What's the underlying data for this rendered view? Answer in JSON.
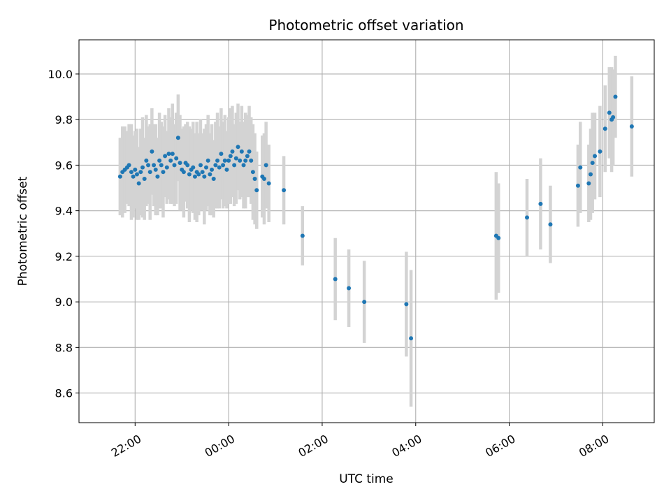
{
  "chart_data": {
    "type": "scatter",
    "title": "Photometric offset variation",
    "xlabel": "UTC time",
    "ylabel": "Photometric offset",
    "x_unit": "hours (UTC, continuing past midnight)",
    "xlim": [
      20.8,
      33.1
    ],
    "ylim": [
      8.47,
      10.15
    ],
    "x_ticks": [
      {
        "value": 22,
        "label": "22:00"
      },
      {
        "value": 24,
        "label": "00:00"
      },
      {
        "value": 26,
        "label": "02:00"
      },
      {
        "value": 28,
        "label": "04:00"
      },
      {
        "value": 30,
        "label": "06:00"
      },
      {
        "value": 32,
        "label": "08:00"
      }
    ],
    "y_ticks": [
      {
        "value": 8.6,
        "label": "8.6"
      },
      {
        "value": 8.8,
        "label": "8.8"
      },
      {
        "value": 9.0,
        "label": "9.0"
      },
      {
        "value": 9.2,
        "label": "9.2"
      },
      {
        "value": 9.4,
        "label": "9.4"
      },
      {
        "value": 9.6,
        "label": "9.6"
      },
      {
        "value": 9.8,
        "label": "9.8"
      },
      {
        "value": 10.0,
        "label": "10.0"
      }
    ],
    "grid": true,
    "colors": {
      "marker": "#1f77b4",
      "errorbar": "#d3d3d3",
      "grid": "#b0b0b0"
    },
    "series": [
      {
        "marker": "circle",
        "points": [
          [
            21.68,
            9.55,
            0.17
          ],
          [
            21.73,
            9.57,
            0.2
          ],
          [
            21.78,
            9.58,
            0.19
          ],
          [
            21.83,
            9.59,
            0.16
          ],
          [
            21.87,
            9.6,
            0.18
          ],
          [
            21.92,
            9.57,
            0.21
          ],
          [
            21.96,
            9.55,
            0.18
          ],
          [
            22.0,
            9.58,
            0.17
          ],
          [
            22.04,
            9.56,
            0.2
          ],
          [
            22.08,
            9.52,
            0.16
          ],
          [
            22.12,
            9.57,
            0.19
          ],
          [
            22.16,
            9.59,
            0.22
          ],
          [
            22.2,
            9.54,
            0.18
          ],
          [
            22.24,
            9.62,
            0.2
          ],
          [
            22.28,
            9.6,
            0.17
          ],
          [
            22.32,
            9.57,
            0.21
          ],
          [
            22.36,
            9.66,
            0.19
          ],
          [
            22.4,
            9.6,
            0.18
          ],
          [
            22.44,
            9.58,
            0.2
          ],
          [
            22.48,
            9.55,
            0.17
          ],
          [
            22.52,
            9.62,
            0.21
          ],
          [
            22.56,
            9.6,
            0.19
          ],
          [
            22.6,
            9.57,
            0.2
          ],
          [
            22.64,
            9.64,
            0.18
          ],
          [
            22.68,
            9.59,
            0.16
          ],
          [
            22.72,
            9.65,
            0.2
          ],
          [
            22.76,
            9.62,
            0.19
          ],
          [
            22.8,
            9.65,
            0.22
          ],
          [
            22.84,
            9.6,
            0.18
          ],
          [
            22.88,
            9.63,
            0.2
          ],
          [
            22.92,
            9.72,
            0.19
          ],
          [
            22.96,
            9.61,
            0.21
          ],
          [
            23.0,
            9.58,
            0.18
          ],
          [
            23.04,
            9.57,
            0.2
          ],
          [
            23.08,
            9.61,
            0.17
          ],
          [
            23.12,
            9.6,
            0.19
          ],
          [
            23.16,
            9.56,
            0.21
          ],
          [
            23.2,
            9.58,
            0.18
          ],
          [
            23.24,
            9.59,
            0.2
          ],
          [
            23.28,
            9.55,
            0.19
          ],
          [
            23.32,
            9.57,
            0.22
          ],
          [
            23.36,
            9.56,
            0.18
          ],
          [
            23.4,
            9.6,
            0.2
          ],
          [
            23.44,
            9.57,
            0.17
          ],
          [
            23.48,
            9.55,
            0.21
          ],
          [
            23.52,
            9.59,
            0.19
          ],
          [
            23.56,
            9.62,
            0.2
          ],
          [
            23.6,
            9.56,
            0.18
          ],
          [
            23.64,
            9.58,
            0.2
          ],
          [
            23.68,
            9.54,
            0.17
          ],
          [
            23.72,
            9.6,
            0.19
          ],
          [
            23.76,
            9.62,
            0.21
          ],
          [
            23.8,
            9.59,
            0.18
          ],
          [
            23.84,
            9.65,
            0.2
          ],
          [
            23.88,
            9.6,
            0.19
          ],
          [
            23.92,
            9.62,
            0.2
          ],
          [
            23.96,
            9.58,
            0.17
          ],
          [
            24.0,
            9.62,
            0.19
          ],
          [
            24.04,
            9.64,
            0.21
          ],
          [
            24.08,
            9.66,
            0.2
          ],
          [
            24.12,
            9.6,
            0.18
          ],
          [
            24.16,
            9.63,
            0.2
          ],
          [
            24.2,
            9.68,
            0.19
          ],
          [
            24.24,
            9.62,
            0.17
          ],
          [
            24.28,
            9.66,
            0.2
          ],
          [
            24.32,
            9.6,
            0.19
          ],
          [
            24.36,
            9.62,
            0.21
          ],
          [
            24.4,
            9.64,
            0.18
          ],
          [
            24.44,
            9.66,
            0.2
          ],
          [
            24.48,
            9.62,
            0.19
          ],
          [
            24.52,
            9.57,
            0.21
          ],
          [
            24.56,
            9.54,
            0.2
          ],
          [
            24.6,
            9.49,
            0.17
          ],
          [
            24.72,
            9.55,
            0.18
          ],
          [
            24.76,
            9.54,
            0.2
          ],
          [
            24.8,
            9.6,
            0.19
          ],
          [
            24.86,
            9.52,
            0.17
          ],
          [
            25.18,
            9.49,
            0.15
          ],
          [
            25.58,
            9.29,
            0.13
          ],
          [
            26.28,
            9.1,
            0.18
          ],
          [
            26.57,
            9.06,
            0.17
          ],
          [
            26.9,
            9.0,
            0.18
          ],
          [
            27.8,
            8.99,
            0.23
          ],
          [
            27.9,
            8.84,
            0.3
          ],
          [
            29.72,
            9.29,
            0.28
          ],
          [
            29.77,
            9.28,
            0.24
          ],
          [
            30.38,
            9.37,
            0.17
          ],
          [
            30.67,
            9.43,
            0.2
          ],
          [
            30.88,
            9.34,
            0.17
          ],
          [
            31.47,
            9.51,
            0.18
          ],
          [
            31.52,
            9.59,
            0.2
          ],
          [
            31.7,
            9.52,
            0.17
          ],
          [
            31.74,
            9.56,
            0.2
          ],
          [
            31.78,
            9.61,
            0.22
          ],
          [
            31.83,
            9.64,
            0.19
          ],
          [
            31.94,
            9.66,
            0.2
          ],
          [
            32.05,
            9.76,
            0.19
          ],
          [
            32.14,
            9.83,
            0.2
          ],
          [
            32.19,
            9.8,
            0.23
          ],
          [
            32.22,
            9.81,
            0.21
          ],
          [
            32.27,
            9.9,
            0.18
          ],
          [
            32.62,
            9.77,
            0.22
          ]
        ]
      }
    ]
  }
}
